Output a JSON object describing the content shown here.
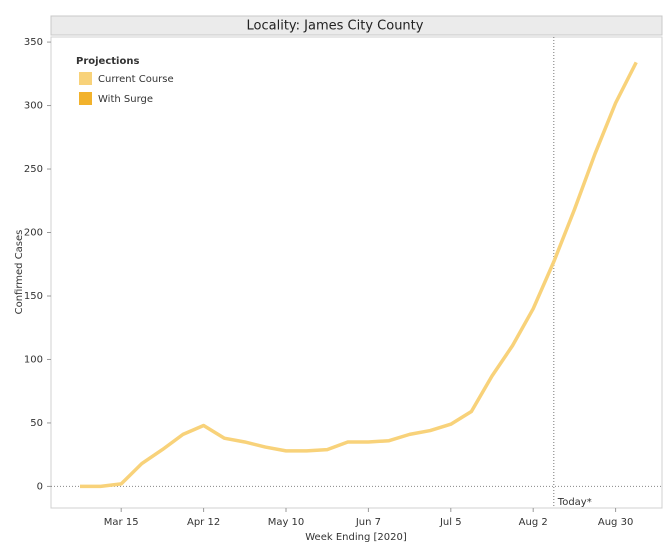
{
  "chart_data": {
    "type": "line",
    "title": "Locality: James City County",
    "x_label": "Week Ending [2020]",
    "y_label": "Confirmed Cases",
    "categories": [
      null,
      null,
      "Mar 15",
      null,
      null,
      null,
      "Apr 12",
      null,
      null,
      null,
      "May 10",
      null,
      null,
      null,
      "Jun 7",
      null,
      null,
      null,
      "Jul 5",
      null,
      null,
      null,
      "Aug 2",
      null,
      null,
      null,
      "Aug 30",
      null
    ],
    "series": [
      {
        "name": "Current Course",
        "color": "#f8d27a",
        "values": [
          0,
          0,
          2,
          18,
          29,
          41,
          48,
          38,
          35,
          31,
          28,
          28,
          29,
          35,
          35,
          36,
          41,
          44,
          49,
          59,
          87,
          111,
          140,
          177,
          218,
          262,
          302,
          334
        ]
      }
    ],
    "legend": {
      "title": "Projections",
      "position": "top-left",
      "items": [
        {
          "name": "Current Course",
          "color": "#f8d27a"
        },
        {
          "name": "With Surge",
          "color": "#f2b22c"
        }
      ]
    },
    "annotations": [
      {
        "text": "Today*",
        "category_index": 23
      }
    ],
    "ylim": [
      -17,
      354
    ],
    "yticks": [
      0,
      50,
      100,
      150,
      200,
      250,
      300,
      350
    ],
    "zero_line": true
  }
}
